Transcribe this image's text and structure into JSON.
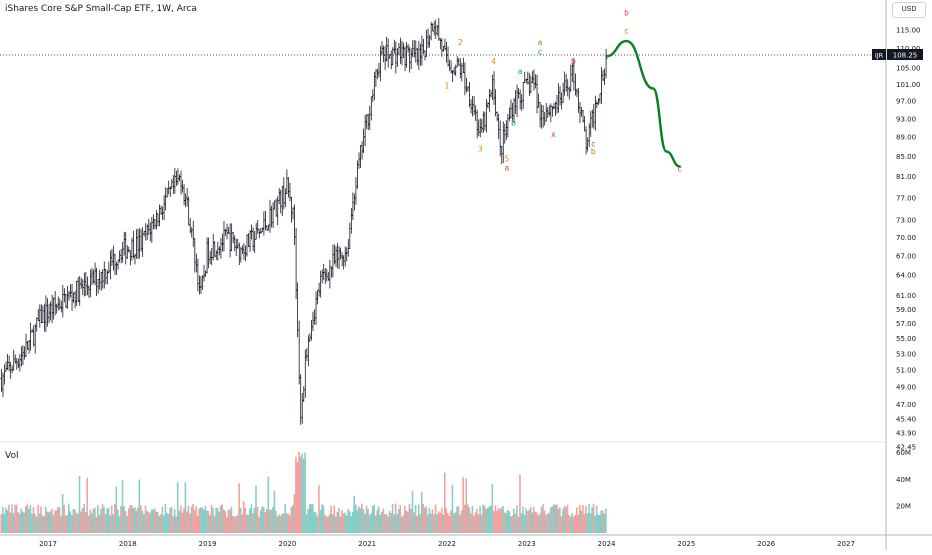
{
  "title": "iShares Core S&P Small-Cap ETF, 1W, Arca",
  "currency": "USD",
  "volume_label": "Vol",
  "last_price": {
    "ticker": "IJR",
    "value": "108.25"
  },
  "colors": {
    "up": "#26a69a",
    "down": "#ef5350",
    "bar": "#131722",
    "forecast": "#087f23",
    "red_label": "#e53935",
    "orange_label": "#f57c00",
    "teal_label": "#009688",
    "olive_label": "#9e8800"
  },
  "chart_data": {
    "type": "ohlc",
    "y_ticks": [
      "115.00",
      "110.00",
      "105.00",
      "101.00",
      "97.00",
      "93.00",
      "89.00",
      "85.00",
      "81.00",
      "77.00",
      "73.00",
      "70.00",
      "67.00",
      "64.00",
      "61.00",
      "59.00",
      "57.00",
      "55.00",
      "53.00",
      "51.00",
      "49.00",
      "47.00",
      "45.40",
      "43.90",
      "42.45"
    ],
    "x_ticks": [
      "2017",
      "2018",
      "2019",
      "2020",
      "2021",
      "2022",
      "2023",
      "2024",
      "2025",
      "2026",
      "2027"
    ],
    "volume_ticks": [
      "60M",
      "40M",
      "20M"
    ],
    "price_path": [
      [
        "2016-06",
        50
      ],
      [
        "2016-10",
        54
      ],
      [
        "2016-12",
        58
      ],
      [
        "2017-03",
        60
      ],
      [
        "2017-06",
        62
      ],
      [
        "2017-09",
        64
      ],
      [
        "2017-12",
        68
      ],
      [
        "2018-03",
        69
      ],
      [
        "2018-06",
        75
      ],
      [
        "2018-09",
        81
      ],
      [
        "2018-10",
        75
      ],
      [
        "2018-12",
        61
      ],
      [
        "2019-01",
        68
      ],
      [
        "2019-04",
        70
      ],
      [
        "2019-06",
        68
      ],
      [
        "2019-09",
        71
      ],
      [
        "2019-12",
        77
      ],
      [
        "2020-01",
        79
      ],
      [
        "2020-02",
        73
      ],
      [
        "2020-03",
        45
      ],
      [
        "2020-04",
        55
      ],
      [
        "2020-06",
        63
      ],
      [
        "2020-08",
        66
      ],
      [
        "2020-10",
        68
      ],
      [
        "2020-11",
        78
      ],
      [
        "2021-01",
        93
      ],
      [
        "2021-03",
        108
      ],
      [
        "2021-06",
        109
      ],
      [
        "2021-09",
        107
      ],
      [
        "2021-11",
        118
      ],
      [
        "2022-01",
        106
      ],
      [
        "2022-03",
        105
      ],
      [
        "2022-05",
        96
      ],
      [
        "2022-06",
        89
      ],
      [
        "2022-08",
        101
      ],
      [
        "2022-09",
        86
      ],
      [
        "2022-11",
        97
      ],
      [
        "2023-02",
        102
      ],
      [
        "2023-03",
        94
      ],
      [
        "2023-06",
        97
      ],
      [
        "2023-08",
        104
      ],
      [
        "2023-10",
        87
      ],
      [
        "2023-12",
        101
      ],
      [
        "2024-01",
        108.25
      ]
    ],
    "forecast_path": [
      [
        "2024-01",
        108
      ],
      [
        "2024-04",
        112
      ],
      [
        "2024-08",
        100
      ],
      [
        "2024-10",
        86
      ],
      [
        "2024-12",
        83
      ]
    ],
    "wave_labels": [
      {
        "text": "2",
        "date": "2022-03",
        "price": 111,
        "color": "orange"
      },
      {
        "text": "1",
        "date": "2022-01",
        "price": 100,
        "color": "orange"
      },
      {
        "text": "4",
        "date": "2022-08",
        "price": 106,
        "color": "orange"
      },
      {
        "text": "3",
        "date": "2022-06",
        "price": 86,
        "color": "orange"
      },
      {
        "text": "5",
        "date": "2022-10",
        "price": 84,
        "color": "orange"
      },
      {
        "text": "a",
        "date": "2022-10",
        "price": 82.2,
        "color": "red"
      },
      {
        "text": "a",
        "date": "2022-12",
        "price": 103.5,
        "color": "teal"
      },
      {
        "text": "b",
        "date": "2022-11",
        "price": 91.5,
        "color": "teal"
      },
      {
        "text": "a",
        "date": "2023-03",
        "price": 111,
        "color": "olive"
      },
      {
        "text": "c",
        "date": "2023-03",
        "price": 108.5,
        "color": "teal"
      },
      {
        "text": "x",
        "date": "2023-05",
        "price": 89,
        "color": "red"
      },
      {
        "text": "b",
        "date": "2023-08",
        "price": 106,
        "color": "red"
      },
      {
        "text": "c",
        "date": "2023-11",
        "price": 87,
        "color": "red"
      },
      {
        "text": "b",
        "date": "2023-11",
        "price": 85.5,
        "color": "olive"
      },
      {
        "text": "b",
        "date": "2024-04",
        "price": 119,
        "color": "red"
      },
      {
        "text": "c",
        "date": "2024-04",
        "price": 114,
        "color": "olive"
      },
      {
        "text": "c",
        "date": "2024-12",
        "price": 82,
        "color": "red"
      }
    ],
    "legend": "none",
    "grid": false
  }
}
